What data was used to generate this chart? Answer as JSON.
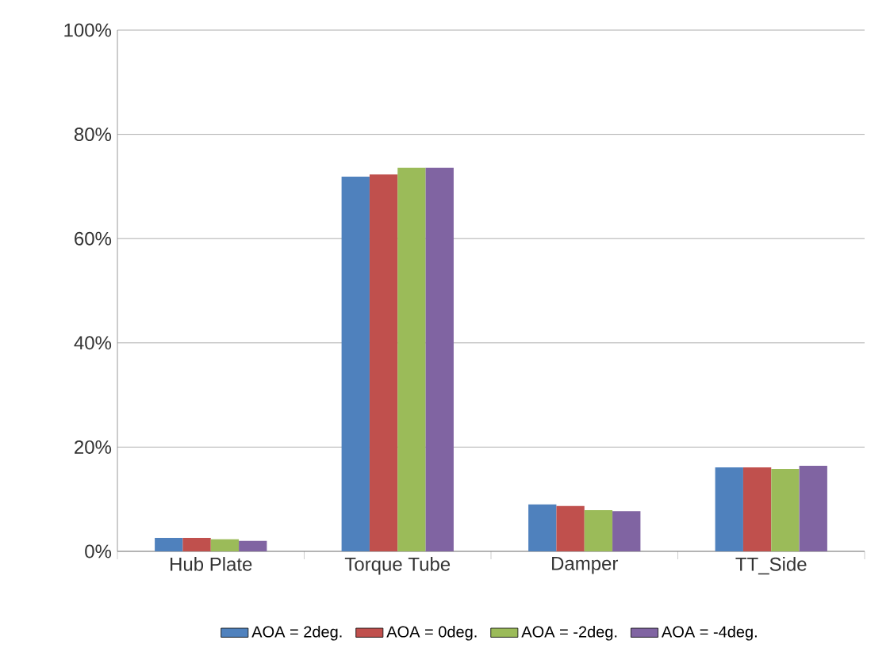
{
  "chart_data": {
    "type": "bar",
    "categories": [
      "Hub Plate",
      "Torque Tube",
      "Damper",
      "TT_Side"
    ],
    "series": [
      {
        "name": "AOA = 2deg.",
        "color": "#4f81bd",
        "values": [
          2.6,
          71.9,
          9.0,
          16.1
        ]
      },
      {
        "name": "AOA = 0deg.",
        "color": "#c0504d",
        "values": [
          2.6,
          72.3,
          8.7,
          16.1
        ]
      },
      {
        "name": "AOA = -2deg.",
        "color": "#9bbb59",
        "values": [
          2.3,
          73.6,
          7.9,
          15.8
        ]
      },
      {
        "name": "AOA = -4deg.",
        "color": "#8064a2",
        "values": [
          2.0,
          73.6,
          7.7,
          16.4
        ]
      }
    ],
    "ylim": [
      0,
      100
    ],
    "yticks": [
      {
        "value": 0,
        "label": "0%"
      },
      {
        "value": 20,
        "label": "20%"
      },
      {
        "value": 40,
        "label": "40%"
      },
      {
        "value": 60,
        "label": "60%"
      },
      {
        "value": 80,
        "label": "80%"
      },
      {
        "value": 100,
        "label": "100%"
      }
    ],
    "grid": "y",
    "legend": "bottom"
  }
}
